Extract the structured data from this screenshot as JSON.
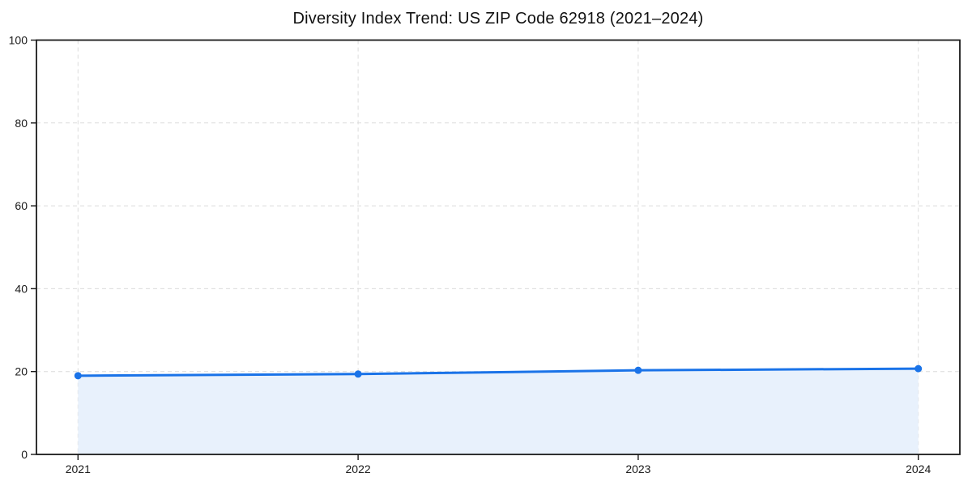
{
  "chart_data": {
    "type": "area",
    "title": "Diversity Index Trend: US ZIP Code 62918 (2021–2024)",
    "categories": [
      "2021",
      "2022",
      "2023",
      "2024"
    ],
    "series": [
      {
        "name": "Diversity Index",
        "values": [
          19.0,
          19.4,
          20.3,
          20.7
        ]
      }
    ],
    "xlabel": "",
    "ylabel": "",
    "ylim": [
      0,
      100
    ],
    "yticks": [
      0,
      20,
      40,
      60,
      80,
      100
    ],
    "grid": true,
    "grid_style": "dashed",
    "legend": "none",
    "colors": {
      "line": "#1a73e8",
      "marker": "#1a73e8",
      "area_fill": "#e8f1fc",
      "grid": "#dcdcdc",
      "spine": "#1a1a1a",
      "tick_label": "#1a1a1a",
      "background": "#ffffff"
    },
    "marker_shape": "circle",
    "line_width": 3
  }
}
